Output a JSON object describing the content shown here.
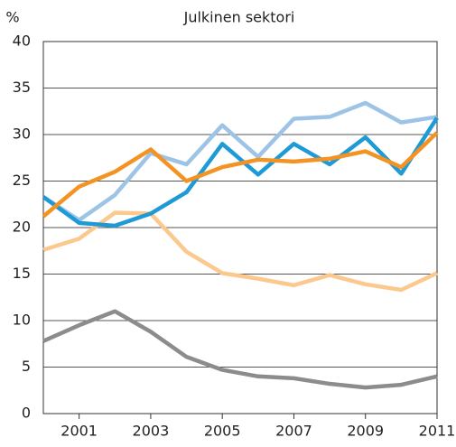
{
  "chart_data": {
    "type": "line",
    "title": "Julkinen sektori",
    "y_label": "%",
    "x": [
      2000,
      2001,
      2002,
      2003,
      2004,
      2005,
      2006,
      2007,
      2008,
      2009,
      2010,
      2011
    ],
    "xlim": [
      2000,
      2011
    ],
    "xticks": [
      2001,
      2003,
      2005,
      2007,
      2009,
      2011
    ],
    "ylim": [
      0,
      40
    ],
    "yticks": [
      0,
      5,
      10,
      15,
      20,
      25,
      30,
      35,
      40
    ],
    "grid": true,
    "series": [
      {
        "color": "#9dc3e6",
        "values": [
          23.3,
          20.8,
          23.5,
          28,
          26.8,
          31,
          27.6,
          31.7,
          31.9,
          33.4,
          31.3,
          31.9
        ]
      },
      {
        "color": "#fbc98e",
        "values": [
          17.6,
          18.8,
          21.6,
          21.5,
          17.4,
          15.1,
          14.5,
          13.8,
          14.9,
          13.9,
          13.3,
          15.1
        ]
      },
      {
        "color": "#8c8c8c",
        "values": [
          7.8,
          9.5,
          11,
          8.8,
          6.1,
          4.7,
          4.0,
          3.8,
          3.2,
          2.8,
          3.1,
          4.0
        ]
      },
      {
        "color": "#1e9ad6",
        "values": [
          23.3,
          20.5,
          20.2,
          21.5,
          23.8,
          29,
          25.7,
          29,
          26.8,
          29.7,
          25.8,
          31.8
        ]
      },
      {
        "color": "#f39323",
        "values": [
          21.2,
          24.4,
          26,
          28.4,
          25,
          26.5,
          27.3,
          27.1,
          27.4,
          28.2,
          26.5,
          30.2
        ]
      }
    ]
  }
}
